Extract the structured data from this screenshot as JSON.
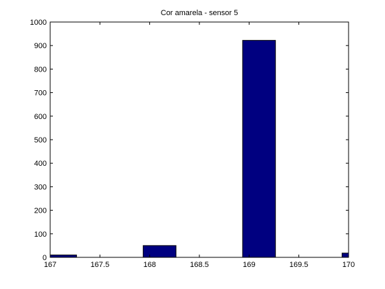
{
  "chart_data": {
    "type": "bar",
    "title": "Cor amarela - sensor 5",
    "xlabel": "",
    "ylabel": "",
    "xlim": [
      167,
      170
    ],
    "ylim": [
      0,
      1000
    ],
    "x_ticks": [
      167,
      167.5,
      168,
      168.5,
      169,
      169.5,
      170
    ],
    "x_tick_labels": [
      "167",
      "167.5",
      "168",
      "168.5",
      "169",
      "169.5",
      "170"
    ],
    "y_ticks": [
      0,
      100,
      200,
      300,
      400,
      500,
      600,
      700,
      800,
      900,
      1000
    ],
    "y_tick_labels": [
      "0",
      "100",
      "200",
      "300",
      "400",
      "500",
      "600",
      "700",
      "800",
      "900",
      "1000"
    ],
    "bin_width": 0.33,
    "bars": [
      {
        "center": 167.1,
        "value": 10
      },
      {
        "center": 168.1,
        "value": 50
      },
      {
        "center": 169.1,
        "value": 922
      },
      {
        "center": 170.1,
        "value": 18
      }
    ],
    "grid": false,
    "legend": "none",
    "bar_color": "#000080",
    "bar_edge_color": "#000000"
  }
}
